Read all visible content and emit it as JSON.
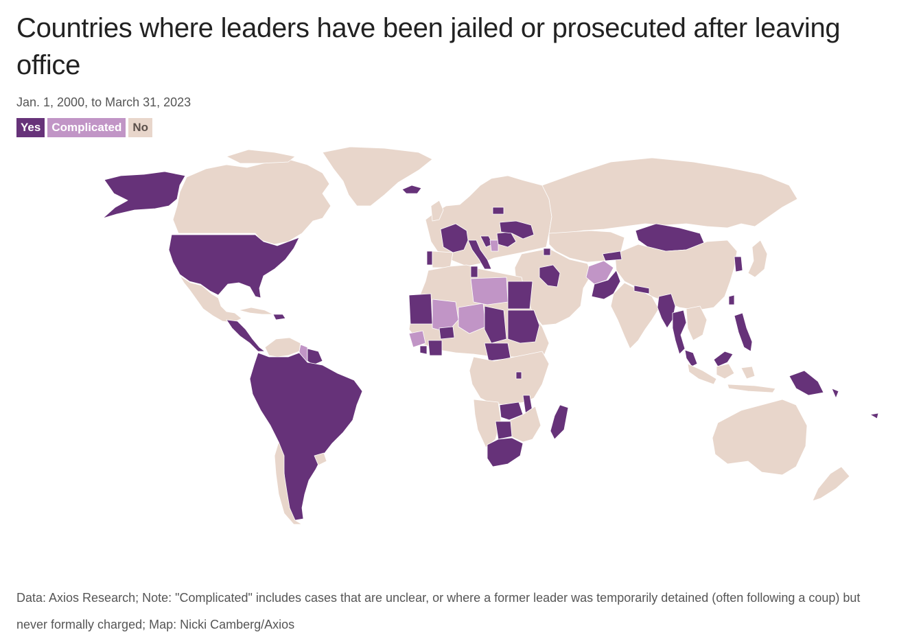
{
  "title": "Countries where leaders have been jailed or prosecuted after leaving office",
  "subtitle": "Jan. 1, 2000, to March 31, 2023",
  "legend": [
    {
      "label": "Yes",
      "color": "#663279"
    },
    {
      "label": "Complicated",
      "color": "#c195c6"
    },
    {
      "label": "No",
      "color": "#e8d6cb"
    }
  ],
  "note": "Data: Axios Research; Note: \"Complicated\" includes cases that are unclear, or where a former leader was temporarily detained (often following a coup) but never formally charged; Map: Nicki Camberg/Axios",
  "map_data": {
    "type": "choropleth",
    "categories": [
      "Yes",
      "Complicated",
      "No"
    ],
    "regions": [
      {
        "name": "United States",
        "status": "Yes"
      },
      {
        "name": "Alaska",
        "status": "Yes"
      },
      {
        "name": "Canada",
        "status": "No"
      },
      {
        "name": "Greenland",
        "status": "No"
      },
      {
        "name": "Mexico",
        "status": "No"
      },
      {
        "name": "Central America",
        "status": "Yes"
      },
      {
        "name": "Cuba",
        "status": "No"
      },
      {
        "name": "Hispaniola",
        "status": "Yes"
      },
      {
        "name": "South America",
        "status": "Yes"
      },
      {
        "name": "Venezuela",
        "status": "No"
      },
      {
        "name": "Guyana",
        "status": "Complicated"
      },
      {
        "name": "Suriname",
        "status": "Yes"
      },
      {
        "name": "Chile",
        "status": "No"
      },
      {
        "name": "Uruguay",
        "status": "No"
      },
      {
        "name": "Iceland",
        "status": "Yes"
      },
      {
        "name": "France",
        "status": "Yes"
      },
      {
        "name": "Portugal",
        "status": "Yes"
      },
      {
        "name": "Italy",
        "status": "Yes"
      },
      {
        "name": "Ukraine",
        "status": "Yes"
      },
      {
        "name": "Romania",
        "status": "Yes"
      },
      {
        "name": "Croatia",
        "status": "Yes"
      },
      {
        "name": "Serbia",
        "status": "Complicated"
      },
      {
        "name": "Lithuania",
        "status": "Yes"
      },
      {
        "name": "Armenia",
        "status": "Yes"
      },
      {
        "name": "Europe (other)",
        "status": "No"
      },
      {
        "name": "Russia",
        "status": "No"
      },
      {
        "name": "Mongolia",
        "status": "Yes"
      },
      {
        "name": "China",
        "status": "No"
      },
      {
        "name": "Kyrgyzstan",
        "status": "Yes"
      },
      {
        "name": "Afghanistan",
        "status": "Complicated"
      },
      {
        "name": "Pakistan",
        "status": "Yes"
      },
      {
        "name": "Iraq",
        "status": "Yes"
      },
      {
        "name": "Middle East (other)",
        "status": "No"
      },
      {
        "name": "India",
        "status": "No"
      },
      {
        "name": "Nepal",
        "status": "Yes"
      },
      {
        "name": "Myanmar",
        "status": "Yes"
      },
      {
        "name": "Thailand",
        "status": "Yes"
      },
      {
        "name": "Malaysia",
        "status": "Yes"
      },
      {
        "name": "Vietnam",
        "status": "No"
      },
      {
        "name": "South Korea",
        "status": "Yes"
      },
      {
        "name": "Japan",
        "status": "No"
      },
      {
        "name": "Taiwan",
        "status": "Yes"
      },
      {
        "name": "Philippines",
        "status": "Yes"
      },
      {
        "name": "Indonesia",
        "status": "No"
      },
      {
        "name": "Papua New Guinea",
        "status": "Yes"
      },
      {
        "name": "Pacific islands",
        "status": "Yes"
      },
      {
        "name": "Australia",
        "status": "No"
      },
      {
        "name": "New Zealand",
        "status": "No"
      },
      {
        "name": "North Africa (other)",
        "status": "No"
      },
      {
        "name": "Libya",
        "status": "Complicated"
      },
      {
        "name": "Egypt",
        "status": "Yes"
      },
      {
        "name": "Tunisia",
        "status": "Yes"
      },
      {
        "name": "Mauritania",
        "status": "Yes"
      },
      {
        "name": "Mali",
        "status": "Complicated"
      },
      {
        "name": "Niger",
        "status": "Complicated"
      },
      {
        "name": "Guinea",
        "status": "Complicated"
      },
      {
        "name": "Burkina Faso",
        "status": "Yes"
      },
      {
        "name": "Ivory Coast",
        "status": "Yes"
      },
      {
        "name": "Liberia",
        "status": "Yes"
      },
      {
        "name": "Chad",
        "status": "Yes"
      },
      {
        "name": "Sudan",
        "status": "Yes"
      },
      {
        "name": "Central African Republic",
        "status": "Yes"
      },
      {
        "name": "Burundi",
        "status": "Yes"
      },
      {
        "name": "Zambia",
        "status": "Yes"
      },
      {
        "name": "Malawi",
        "status": "Yes"
      },
      {
        "name": "Botswana",
        "status": "Yes"
      },
      {
        "name": "South Africa",
        "status": "Yes"
      },
      {
        "name": "Madagascar",
        "status": "Yes"
      },
      {
        "name": "Central & East Africa (other)",
        "status": "No"
      },
      {
        "name": "Angola & Namibia",
        "status": "No"
      }
    ]
  }
}
